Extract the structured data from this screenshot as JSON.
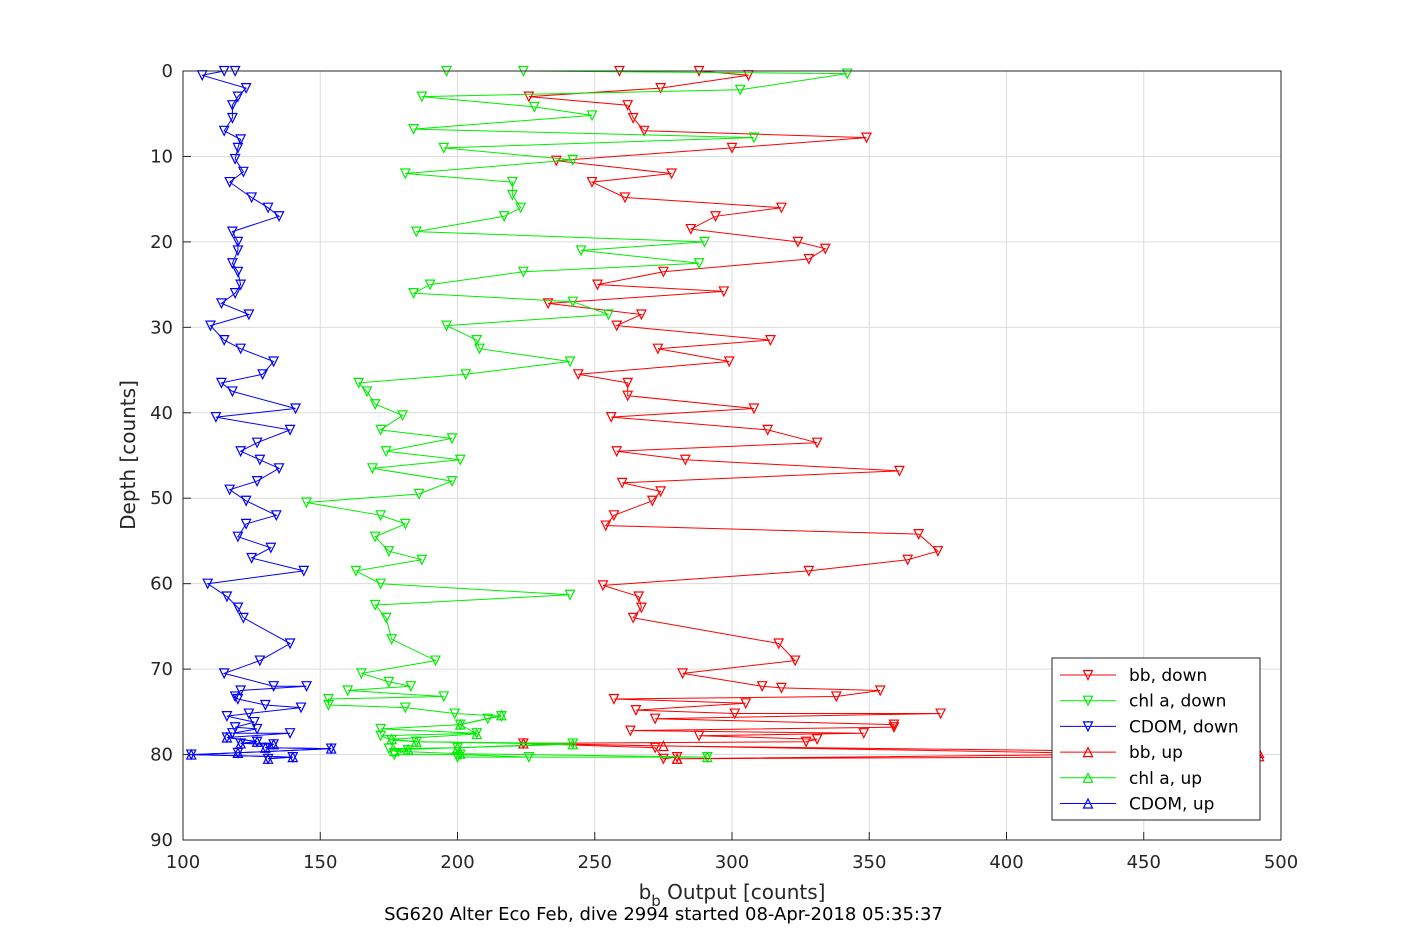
{
  "footer_text": "SG620 Alter Eco Feb, dive 2994 started 08-Apr-2018 05:35:37",
  "chart_data": {
    "type": "line",
    "title": "",
    "xlabel_main": "b",
    "xlabel_sub": "b",
    "xlabel_rest": " Output [counts]",
    "ylabel": "Depth [counts]",
    "xlim": [
      100,
      500
    ],
    "ylim": [
      0,
      90
    ],
    "y_reversed": true,
    "grid": true,
    "legend_position": "bottom-right",
    "xticks": [
      100,
      150,
      200,
      250,
      300,
      350,
      400,
      450,
      500
    ],
    "yticks": [
      0,
      10,
      20,
      30,
      40,
      50,
      60,
      70,
      80,
      90
    ],
    "series": [
      {
        "name": "bb, down",
        "color": "#ff0000",
        "marker": "triangle-down",
        "points": [
          [
            259,
            0
          ],
          [
            288,
            0
          ],
          [
            306,
            0.5
          ],
          [
            274,
            2
          ],
          [
            226,
            3
          ],
          [
            262,
            4
          ],
          [
            264,
            5.5
          ],
          [
            268,
            7
          ],
          [
            349,
            7.8
          ],
          [
            300,
            9
          ],
          [
            236,
            10.5
          ],
          [
            278,
            12
          ],
          [
            249,
            13
          ],
          [
            261,
            14.8
          ],
          [
            318,
            16
          ],
          [
            294,
            17
          ],
          [
            285,
            18.5
          ],
          [
            324,
            20
          ],
          [
            334,
            20.8
          ],
          [
            328,
            22
          ],
          [
            275,
            23.5
          ],
          [
            251,
            25
          ],
          [
            297,
            25.8
          ],
          [
            233,
            27.2
          ],
          [
            267,
            28.5
          ],
          [
            258,
            29.8
          ],
          [
            314,
            31.5
          ],
          [
            273,
            32.5
          ],
          [
            299,
            34
          ],
          [
            244,
            35.5
          ],
          [
            262,
            36.5
          ],
          [
            262,
            38
          ],
          [
            308,
            39.5
          ],
          [
            256,
            40.5
          ],
          [
            313,
            42
          ],
          [
            331,
            43.5
          ],
          [
            258,
            44.5
          ],
          [
            283,
            45.5
          ],
          [
            361,
            46.8
          ],
          [
            260,
            48.2
          ],
          [
            274,
            49.2
          ],
          [
            271,
            50.3
          ],
          [
            257,
            52
          ],
          [
            254,
            53.2
          ],
          [
            368,
            54.2
          ],
          [
            375,
            56.2
          ],
          [
            364,
            57.2
          ],
          [
            328,
            58.5
          ],
          [
            253,
            60.2
          ],
          [
            266,
            61.5
          ],
          [
            267,
            62.8
          ],
          [
            264,
            64
          ],
          [
            317,
            67
          ],
          [
            323,
            69
          ],
          [
            282,
            70.5
          ],
          [
            311,
            72
          ],
          [
            318,
            72.2
          ],
          [
            354,
            72.5
          ],
          [
            338,
            73.2
          ],
          [
            257,
            73.5
          ],
          [
            305,
            74
          ],
          [
            265,
            74.8
          ],
          [
            301,
            75.2
          ],
          [
            376,
            75.2
          ],
          [
            272,
            75.8
          ],
          [
            359,
            76.5
          ],
          [
            359,
            76.8
          ],
          [
            263,
            77.2
          ],
          [
            348,
            77.5
          ],
          [
            288,
            77.8
          ],
          [
            331,
            78.2
          ],
          [
            327,
            78.5
          ],
          [
            224,
            78.7
          ],
          [
            272,
            79.2
          ],
          [
            275,
            80.5
          ],
          [
            280,
            80.3
          ]
        ]
      },
      {
        "name": "chl a, down",
        "color": "#00ee00",
        "marker": "triangle-down",
        "points": [
          [
            196,
            0
          ],
          [
            224,
            0
          ],
          [
            342,
            0.3
          ],
          [
            303,
            2.2
          ],
          [
            187,
            3
          ],
          [
            228,
            4.2
          ],
          [
            249,
            5.2
          ],
          [
            184,
            6.8
          ],
          [
            308,
            7.8
          ],
          [
            195,
            9
          ],
          [
            242,
            10.4
          ],
          [
            181,
            12
          ],
          [
            220,
            13
          ],
          [
            220,
            14.5
          ],
          [
            223,
            16
          ],
          [
            217,
            17
          ],
          [
            185,
            18.8
          ],
          [
            290,
            20
          ],
          [
            245,
            21
          ],
          [
            288,
            22.5
          ],
          [
            224,
            23.5
          ],
          [
            190,
            25
          ],
          [
            184,
            26
          ],
          [
            242,
            27
          ],
          [
            255,
            28.5
          ],
          [
            196,
            29.8
          ],
          [
            207,
            31.5
          ],
          [
            208,
            32.5
          ],
          [
            241,
            34
          ],
          [
            203,
            35.5
          ],
          [
            164,
            36.5
          ],
          [
            167,
            37.5
          ],
          [
            170,
            39
          ],
          [
            180,
            40.3
          ],
          [
            172,
            42
          ],
          [
            198,
            43
          ],
          [
            174,
            44.5
          ],
          [
            201,
            45.5
          ],
          [
            169,
            46.5
          ],
          [
            198,
            48
          ],
          [
            186,
            49.5
          ],
          [
            145,
            50.5
          ],
          [
            172,
            52
          ],
          [
            181,
            53
          ],
          [
            170,
            54.5
          ],
          [
            175,
            56.2
          ],
          [
            187,
            57.2
          ],
          [
            163,
            58.5
          ],
          [
            172,
            60
          ],
          [
            241,
            61.3
          ],
          [
            170,
            62.5
          ],
          [
            174,
            64
          ],
          [
            176,
            66.5
          ],
          [
            192,
            69
          ],
          [
            165,
            70.5
          ],
          [
            175,
            71.5
          ],
          [
            183,
            72
          ],
          [
            160,
            72.5
          ],
          [
            195,
            73.2
          ],
          [
            153,
            73.5
          ],
          [
            153,
            74.2
          ],
          [
            181,
            74.5
          ],
          [
            199,
            75.2
          ],
          [
            216,
            75.5
          ],
          [
            211,
            75.8
          ],
          [
            201,
            76.5
          ],
          [
            172,
            77
          ],
          [
            207,
            77.5
          ],
          [
            172,
            77.8
          ],
          [
            176,
            78.3
          ],
          [
            185,
            78.5
          ],
          [
            242,
            78.7
          ],
          [
            200,
            79.2
          ],
          [
            175,
            79.3
          ],
          [
            182,
            79.5
          ],
          [
            177,
            80
          ],
          [
            201,
            80
          ],
          [
            226,
            80.3
          ],
          [
            291,
            80.3
          ],
          [
            200,
            80.3
          ]
        ]
      },
      {
        "name": "CDOM, down",
        "color": "#0000ff",
        "marker": "triangle-down",
        "points": [
          [
            119,
            0
          ],
          [
            115,
            0
          ],
          [
            107,
            0.5
          ],
          [
            123,
            2
          ],
          [
            120,
            3
          ],
          [
            118,
            4
          ],
          [
            118,
            5.5
          ],
          [
            115,
            7
          ],
          [
            121,
            8
          ],
          [
            120,
            9
          ],
          [
            119,
            10.3
          ],
          [
            122,
            11.8
          ],
          [
            117,
            13
          ],
          [
            125,
            14.8
          ],
          [
            131,
            16
          ],
          [
            135,
            17
          ],
          [
            118,
            18.8
          ],
          [
            120,
            20
          ],
          [
            120,
            21
          ],
          [
            118,
            22.5
          ],
          [
            120,
            23.5
          ],
          [
            121,
            25
          ],
          [
            119,
            26
          ],
          [
            114,
            27.2
          ],
          [
            124,
            28.5
          ],
          [
            110,
            29.8
          ],
          [
            115,
            31.5
          ],
          [
            121,
            32.5
          ],
          [
            133,
            34
          ],
          [
            129,
            35.5
          ],
          [
            114,
            36.5
          ],
          [
            118,
            37.5
          ],
          [
            141,
            39.5
          ],
          [
            112,
            40.5
          ],
          [
            139,
            42
          ],
          [
            127,
            43.5
          ],
          [
            121,
            44.5
          ],
          [
            128,
            45.5
          ],
          [
            135,
            46.5
          ],
          [
            127,
            48
          ],
          [
            117,
            49
          ],
          [
            123,
            50.3
          ],
          [
            134,
            52
          ],
          [
            123,
            53
          ],
          [
            120,
            54.5
          ],
          [
            132,
            55.8
          ],
          [
            125,
            57
          ],
          [
            144,
            58.5
          ],
          [
            109,
            60
          ],
          [
            116,
            61.5
          ],
          [
            120,
            62.8
          ],
          [
            122,
            64
          ],
          [
            139,
            67
          ],
          [
            128,
            69
          ],
          [
            115,
            70.5
          ],
          [
            133,
            72
          ],
          [
            145,
            72
          ],
          [
            121,
            72.5
          ],
          [
            119,
            73.2
          ],
          [
            120,
            73.5
          ],
          [
            130,
            74.2
          ],
          [
            143,
            74.5
          ],
          [
            124,
            75.2
          ],
          [
            116,
            75.5
          ],
          [
            126,
            76.2
          ],
          [
            119,
            76.8
          ],
          [
            127,
            77
          ],
          [
            118,
            77.5
          ],
          [
            139,
            77.5
          ],
          [
            116,
            78
          ],
          [
            127,
            78.5
          ],
          [
            121,
            78.7
          ],
          [
            133,
            78.8
          ],
          [
            130,
            79.2
          ],
          [
            154,
            79.3
          ],
          [
            120,
            79.8
          ],
          [
            103,
            80
          ],
          [
            140,
            80.3
          ],
          [
            131,
            80.5
          ]
        ]
      },
      {
        "name": "bb, up",
        "color": "#ff0000",
        "marker": "triangle-up",
        "points": [
          [
            280,
            80.5
          ],
          [
            492,
            79.8
          ],
          [
            275,
            79
          ],
          [
            224,
            78.7
          ],
          [
            492,
            80.2
          ],
          [
            280,
            80.5
          ]
        ]
      },
      {
        "name": "chl a, up",
        "color": "#00ee00",
        "marker": "triangle-up",
        "points": [
          [
            291,
            80.3
          ],
          [
            201,
            79.9
          ],
          [
            177,
            79.6
          ],
          [
            182,
            79.4
          ],
          [
            200,
            79.2
          ],
          [
            242,
            78.8
          ],
          [
            185,
            78.5
          ],
          [
            176,
            78.2
          ],
          [
            207,
            77.6
          ],
          [
            201,
            76.5
          ],
          [
            216,
            75.4
          ]
        ]
      },
      {
        "name": "CDOM, up",
        "color": "#0000ff",
        "marker": "triangle-up",
        "points": [
          [
            131,
            80.5
          ],
          [
            140,
            80.3
          ],
          [
            103,
            80
          ],
          [
            120,
            79.8
          ],
          [
            154,
            79.3
          ],
          [
            130,
            79.2
          ],
          [
            133,
            78.8
          ],
          [
            121,
            78.7
          ],
          [
            127,
            78.5
          ],
          [
            116,
            78
          ]
        ]
      }
    ]
  }
}
